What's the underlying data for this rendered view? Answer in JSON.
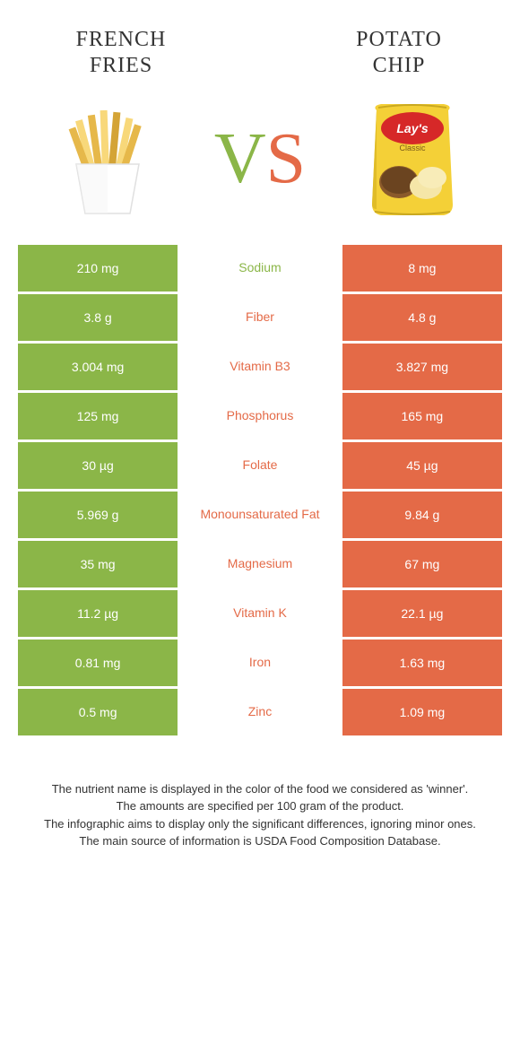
{
  "foods": {
    "left": {
      "name": "French\nFries",
      "color": "#8bb648"
    },
    "right": {
      "name": "Potato\nChip",
      "color": "#e46a47"
    }
  },
  "vs": {
    "v": "V",
    "s": "S"
  },
  "rows": [
    {
      "left": "210 mg",
      "label": "Sodium",
      "right": "8 mg",
      "winner": "left"
    },
    {
      "left": "3.8 g",
      "label": "Fiber",
      "right": "4.8 g",
      "winner": "right"
    },
    {
      "left": "3.004 mg",
      "label": "Vitamin B3",
      "right": "3.827 mg",
      "winner": "right"
    },
    {
      "left": "125 mg",
      "label": "Phosphorus",
      "right": "165 mg",
      "winner": "right"
    },
    {
      "left": "30 µg",
      "label": "Folate",
      "right": "45 µg",
      "winner": "right"
    },
    {
      "left": "5.969 g",
      "label": "Monounsaturated Fat",
      "right": "9.84 g",
      "winner": "right"
    },
    {
      "left": "35 mg",
      "label": "Magnesium",
      "right": "67 mg",
      "winner": "right"
    },
    {
      "left": "11.2 µg",
      "label": "Vitamin K",
      "right": "22.1 µg",
      "winner": "right"
    },
    {
      "left": "0.81 mg",
      "label": "Iron",
      "right": "1.63 mg",
      "winner": "right"
    },
    {
      "left": "0.5 mg",
      "label": "Zinc",
      "right": "1.09 mg",
      "winner": "right"
    }
  ],
  "footer": [
    "The nutrient name is displayed in the color of the food we considered as 'winner'.",
    "The amounts are specified per 100 gram of the product.",
    "The infographic aims to display only the significant differences, ignoring minor ones.",
    "The main source of information is USDA Food Composition Database."
  ],
  "colors": {
    "green": "#8bb648",
    "orange": "#e46a47",
    "bag_yellow": "#f4d037",
    "bag_red": "#d62828",
    "fry_light": "#f8d87a",
    "fry_dark": "#e6b84a",
    "fry_shadow": "#d4a436"
  }
}
